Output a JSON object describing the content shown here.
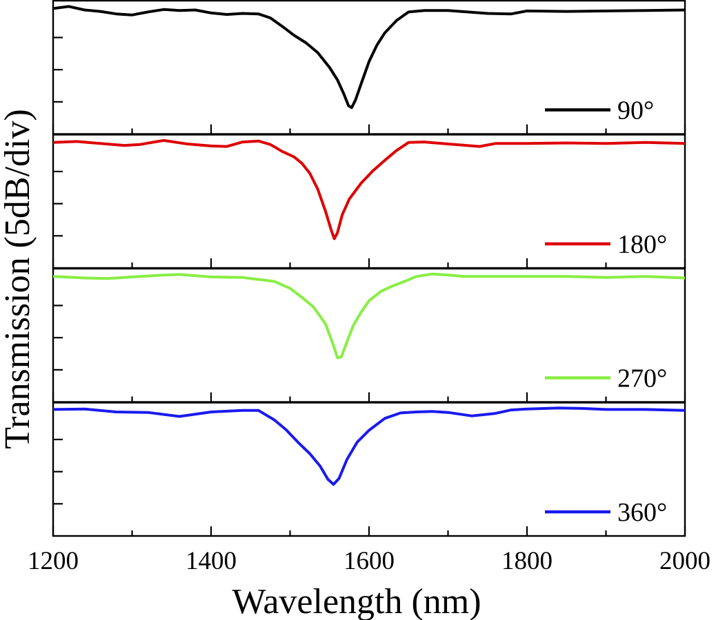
{
  "chart_data": {
    "type": "line",
    "xlabel": "Wavelength (nm)",
    "ylabel": "Transmission (5dB/div)",
    "xlim": [
      1200,
      2000
    ],
    "x_ticks": [
      "1200",
      "1400",
      "1600",
      "1800",
      "2000"
    ],
    "stacked_panels": 4,
    "grid": false,
    "legend_placement": "bottom-right of each panel",
    "series": [
      {
        "name": "90°",
        "color": "#000000",
        "points": [
          [
            1200,
            0.6
          ],
          [
            1220,
            0.2
          ],
          [
            1240,
            0.9
          ],
          [
            1260,
            1.2
          ],
          [
            1280,
            1.7
          ],
          [
            1300,
            1.9
          ],
          [
            1320,
            1.3
          ],
          [
            1340,
            0.8
          ],
          [
            1360,
            1.0
          ],
          [
            1380,
            0.9
          ],
          [
            1400,
            1.5
          ],
          [
            1420,
            1.8
          ],
          [
            1440,
            1.6
          ],
          [
            1460,
            1.7
          ],
          [
            1475,
            2.5
          ],
          [
            1490,
            4.2
          ],
          [
            1505,
            6.0
          ],
          [
            1520,
            7.5
          ],
          [
            1535,
            9.5
          ],
          [
            1550,
            12.5
          ],
          [
            1560,
            15.0
          ],
          [
            1568,
            17.8
          ],
          [
            1574,
            20.2
          ],
          [
            1578,
            20.6
          ],
          [
            1583,
            19.0
          ],
          [
            1590,
            15.8
          ],
          [
            1600,
            11.3
          ],
          [
            1610,
            8.0
          ],
          [
            1620,
            5.5
          ],
          [
            1635,
            3.0
          ],
          [
            1650,
            1.3
          ],
          [
            1670,
            1.0
          ],
          [
            1700,
            1.0
          ],
          [
            1750,
            1.6
          ],
          [
            1780,
            1.7
          ],
          [
            1800,
            1.1
          ],
          [
            1850,
            1.2
          ],
          [
            1900,
            1.1
          ],
          [
            1950,
            1.0
          ],
          [
            2000,
            0.9
          ]
        ]
      },
      {
        "name": "180°",
        "color": "#dd0000",
        "points": [
          [
            1200,
            0.6
          ],
          [
            1230,
            0.4
          ],
          [
            1260,
            0.8
          ],
          [
            1290,
            1.2
          ],
          [
            1310,
            1.0
          ],
          [
            1340,
            0.2
          ],
          [
            1370,
            0.9
          ],
          [
            1400,
            1.3
          ],
          [
            1420,
            1.4
          ],
          [
            1440,
            0.5
          ],
          [
            1460,
            0.3
          ],
          [
            1475,
            1.0
          ],
          [
            1490,
            2.4
          ],
          [
            1505,
            3.5
          ],
          [
            1515,
            4.8
          ],
          [
            1525,
            6.8
          ],
          [
            1535,
            10.0
          ],
          [
            1545,
            14.5
          ],
          [
            1552,
            18.2
          ],
          [
            1556,
            20.0
          ],
          [
            1560,
            18.8
          ],
          [
            1566,
            15.2
          ],
          [
            1575,
            12.0
          ],
          [
            1590,
            8.8
          ],
          [
            1605,
            6.3
          ],
          [
            1620,
            4.2
          ],
          [
            1635,
            2.2
          ],
          [
            1650,
            0.6
          ],
          [
            1670,
            0.5
          ],
          [
            1700,
            0.9
          ],
          [
            1740,
            1.4
          ],
          [
            1760,
            0.8
          ],
          [
            1800,
            0.8
          ],
          [
            1850,
            0.7
          ],
          [
            1900,
            0.8
          ],
          [
            1950,
            0.6
          ],
          [
            2000,
            0.8
          ]
        ]
      },
      {
        "name": "270°",
        "color": "#88ee44",
        "points": [
          [
            1200,
            0.6
          ],
          [
            1240,
            0.9
          ],
          [
            1270,
            1.0
          ],
          [
            1300,
            0.7
          ],
          [
            1340,
            0.3
          ],
          [
            1360,
            0.2
          ],
          [
            1400,
            0.7
          ],
          [
            1440,
            0.8
          ],
          [
            1460,
            1.2
          ],
          [
            1480,
            1.6
          ],
          [
            1500,
            3.0
          ],
          [
            1515,
            4.8
          ],
          [
            1530,
            6.8
          ],
          [
            1545,
            10.2
          ],
          [
            1555,
            14.5
          ],
          [
            1560,
            17.0
          ],
          [
            1565,
            16.8
          ],
          [
            1572,
            13.8
          ],
          [
            1580,
            10.5
          ],
          [
            1590,
            7.8
          ],
          [
            1600,
            5.5
          ],
          [
            1615,
            3.6
          ],
          [
            1630,
            2.5
          ],
          [
            1645,
            1.6
          ],
          [
            1660,
            0.6
          ],
          [
            1680,
            0.1
          ],
          [
            1700,
            0.3
          ],
          [
            1720,
            0.6
          ],
          [
            1760,
            0.6
          ],
          [
            1800,
            0.6
          ],
          [
            1850,
            0.6
          ],
          [
            1900,
            0.8
          ],
          [
            1950,
            0.6
          ],
          [
            2000,
            0.9
          ]
        ]
      },
      {
        "name": "360°",
        "color": "#1a1aee",
        "points": [
          [
            1200,
            0.4
          ],
          [
            1240,
            0.3
          ],
          [
            1280,
            0.9
          ],
          [
            1320,
            1.0
          ],
          [
            1360,
            1.8
          ],
          [
            1400,
            0.9
          ],
          [
            1440,
            0.6
          ],
          [
            1460,
            0.6
          ],
          [
            1480,
            2.5
          ],
          [
            1495,
            4.5
          ],
          [
            1510,
            7.0
          ],
          [
            1525,
            9.3
          ],
          [
            1538,
            11.8
          ],
          [
            1548,
            14.5
          ],
          [
            1555,
            15.5
          ],
          [
            1562,
            14.3
          ],
          [
            1572,
            10.5
          ],
          [
            1585,
            7.0
          ],
          [
            1600,
            4.6
          ],
          [
            1620,
            2.2
          ],
          [
            1640,
            1.1
          ],
          [
            1660,
            0.9
          ],
          [
            1680,
            0.8
          ],
          [
            1700,
            1.0
          ],
          [
            1730,
            1.7
          ],
          [
            1760,
            1.2
          ],
          [
            1780,
            0.5
          ],
          [
            1800,
            0.3
          ],
          [
            1840,
            0.1
          ],
          [
            1870,
            0.2
          ],
          [
            1900,
            0.4
          ],
          [
            1950,
            0.4
          ],
          [
            2000,
            0.6
          ]
        ]
      }
    ]
  }
}
